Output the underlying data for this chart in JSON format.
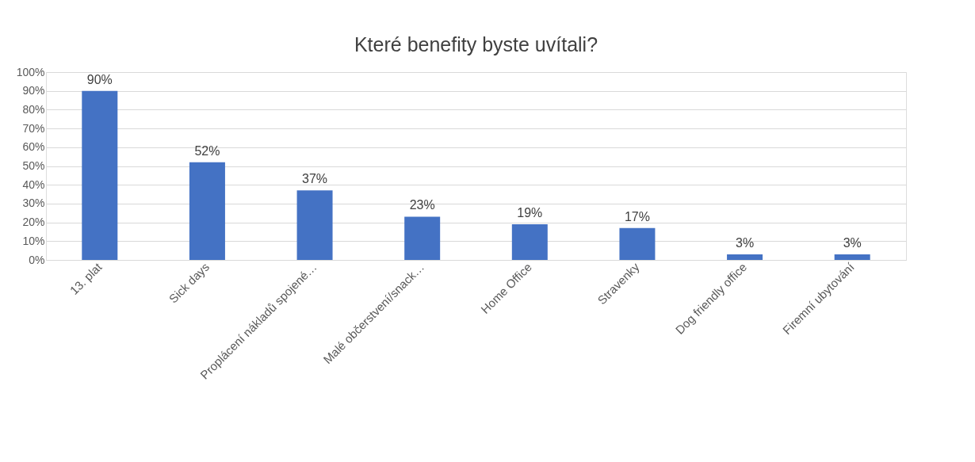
{
  "chart_data": {
    "type": "bar",
    "title": "Které benefity byste uvítali?",
    "categories": [
      "13. plat",
      "Sick days",
      "Proplácení nákladů spojené…",
      "Malé občerstvení/snack…",
      "Home Office",
      "Stravenky",
      "Dog friendly office",
      "Firemní ubytování"
    ],
    "values": [
      90,
      52,
      37,
      23,
      19,
      17,
      3,
      3
    ],
    "value_labels": [
      "90%",
      "52%",
      "37%",
      "23%",
      "19%",
      "17%",
      "3%",
      "3%"
    ],
    "color": "#4472c4",
    "ylim": [
      0,
      100
    ],
    "yticks": [
      {
        "value": 0,
        "label": "0%"
      },
      {
        "value": 10,
        "label": "10%"
      },
      {
        "value": 20,
        "label": "20%"
      },
      {
        "value": 30,
        "label": "30%"
      },
      {
        "value": 40,
        "label": "40%"
      },
      {
        "value": 50,
        "label": "50%"
      },
      {
        "value": 60,
        "label": "60%"
      },
      {
        "value": 70,
        "label": "70%"
      },
      {
        "value": 80,
        "label": "80%"
      },
      {
        "value": 90,
        "label": "90%"
      },
      {
        "value": 100,
        "label": "100%"
      }
    ],
    "grid": "y"
  }
}
